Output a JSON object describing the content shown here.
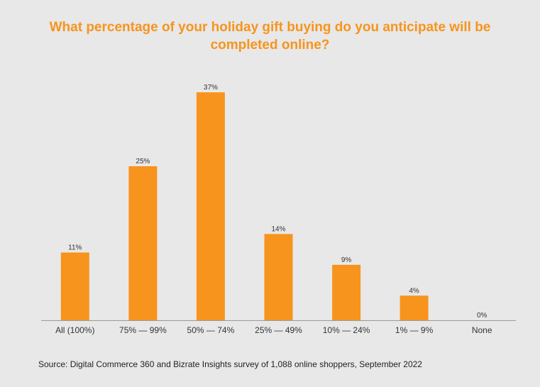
{
  "chart_data": {
    "type": "bar",
    "title": "What percentage of your holiday gift buying do you anticipate will be completed online?",
    "categories": [
      "All (100%)",
      "75% — 99%",
      "50% — 74%",
      "25% — 49%",
      "10% — 24%",
      "1% — 9%",
      "None"
    ],
    "values": [
      11,
      25,
      37,
      14,
      9,
      4,
      0
    ],
    "data_labels": [
      "11%",
      "25%",
      "37%",
      "14%",
      "9%",
      "4%",
      "0%"
    ],
    "xlabel": "",
    "ylabel": "",
    "ylim": [
      0,
      37
    ],
    "grid": false,
    "legend": "none",
    "bar_color": "#f7941d"
  },
  "source": "Source:  Digital Commerce 360 and Bizrate Insights survey of 1,088 online shoppers, September  2022",
  "colors": {
    "background": "#e8e8e8",
    "title": "#f7941d",
    "bar": "#f7941d",
    "axis": "#9a9a9a",
    "text": "#333333"
  }
}
